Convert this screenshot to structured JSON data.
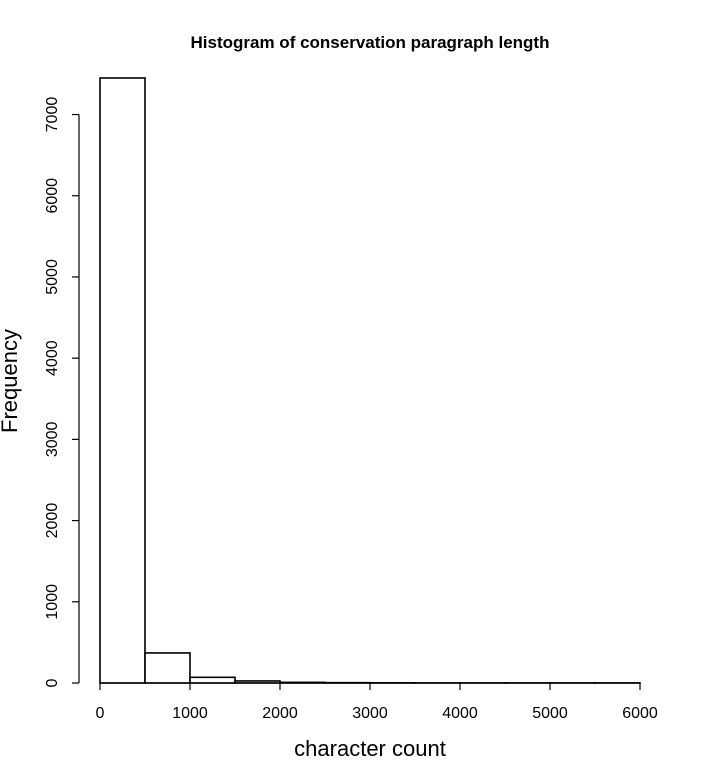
{
  "chart_data": {
    "type": "bar",
    "title": "Histogram of conservation paragraph length",
    "xlabel": "character count",
    "ylabel": "Frequency",
    "bins": [
      {
        "x0": 0,
        "x1": 500,
        "count": 7450
      },
      {
        "x0": 500,
        "x1": 1000,
        "count": 370
      },
      {
        "x0": 1000,
        "x1": 1500,
        "count": 70
      },
      {
        "x0": 1500,
        "x1": 2000,
        "count": 25
      },
      {
        "x0": 2000,
        "x1": 2500,
        "count": 8
      },
      {
        "x0": 2500,
        "x1": 3000,
        "count": 4
      },
      {
        "x0": 3000,
        "x1": 3500,
        "count": 2
      },
      {
        "x0": 3500,
        "x1": 4000,
        "count": 1
      },
      {
        "x0": 4000,
        "x1": 4500,
        "count": 1
      },
      {
        "x0": 4500,
        "x1": 5000,
        "count": 1
      },
      {
        "x0": 5000,
        "x1": 5500,
        "count": 1
      },
      {
        "x0": 5500,
        "x1": 6000,
        "count": 1
      }
    ],
    "xticks": [
      0,
      1000,
      2000,
      3000,
      4000,
      5000,
      6000
    ],
    "yticks": [
      0,
      1000,
      2000,
      3000,
      4000,
      5000,
      6000,
      7000
    ],
    "xlim": [
      0,
      6000
    ],
    "ylim": [
      0,
      7450
    ],
    "grid": false,
    "legend": "none",
    "bar_fill": "#ffffff",
    "bar_stroke": "#000000"
  }
}
